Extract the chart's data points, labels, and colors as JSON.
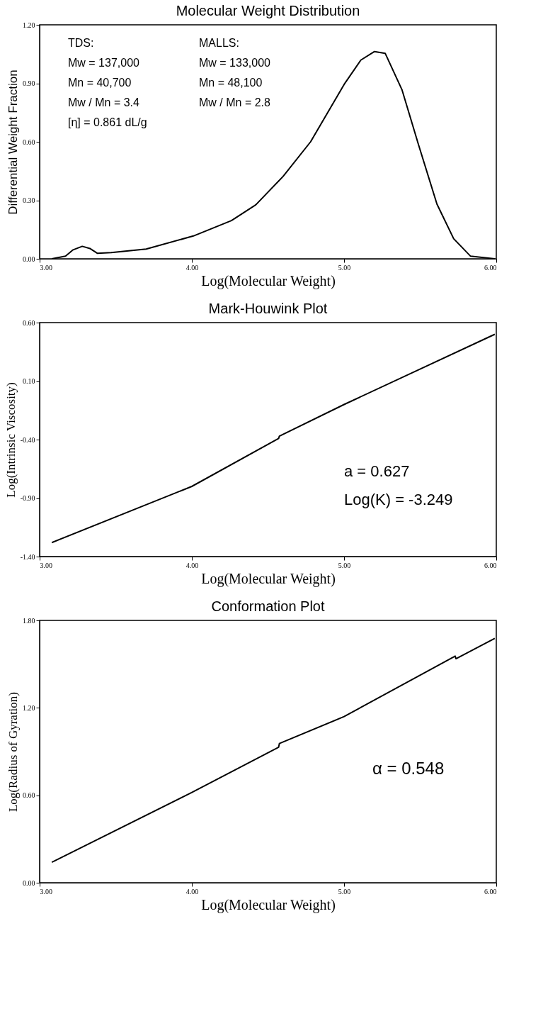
{
  "chart_data": [
    {
      "type": "line",
      "title": "Molecular Weight Distribution",
      "xlabel": "Log(Molecular Weight)",
      "ylabel": "Differential Weight Fraction",
      "x": [
        3.08,
        3.17,
        3.22,
        3.28,
        3.33,
        3.38,
        3.47,
        3.7,
        4.01,
        4.26,
        4.42,
        4.6,
        4.78,
        5.0,
        5.11,
        5.2,
        5.27,
        5.38,
        5.49,
        5.61,
        5.72,
        5.83,
        5.99
      ],
      "series": [
        {
          "color": "#000000",
          "values": [
            0.0,
            0.014,
            0.046,
            0.064,
            0.053,
            0.028,
            0.032,
            0.05,
            0.117,
            0.196,
            0.277,
            0.423,
            0.6,
            0.894,
            1.019,
            1.063,
            1.054,
            0.868,
            0.583,
            0.281,
            0.103,
            0.014,
            0.0
          ]
        }
      ],
      "xlim": [
        3,
        6
      ],
      "ylim": [
        0,
        1.2
      ],
      "xticks": [
        {
          "value": 3,
          "label": "3.00"
        },
        {
          "value": 4,
          "label": "4.00"
        },
        {
          "value": 5,
          "label": "5.00"
        },
        {
          "value": 6,
          "label": "6.00"
        }
      ],
      "yticks": [
        {
          "value": 0,
          "label": "0.00"
        },
        {
          "value": 0.3,
          "label": "0.30"
        },
        {
          "value": 0.6,
          "label": "0.60"
        },
        {
          "value": 0.9,
          "label": "0.90"
        },
        {
          "value": 1.2,
          "label": "1.20"
        }
      ],
      "annotations": [
        "TDS:",
        "Mw = 137,000",
        "Mn = 40,700",
        "Mw / Mn = 3.4",
        "[η] = 0.861 dL/g",
        "MALLS:",
        "Mw = 133,000",
        "Mn = 48,100",
        "Mw / Mn = 2.8"
      ],
      "grid": false,
      "legend": false,
      "marker": "none",
      "line_style": "solid"
    },
    {
      "type": "line",
      "title": "Mark-Houwink Plot",
      "xlabel": "Log(Molecular Weight)",
      "ylabel": "Log(Intrinsic Viscosity)",
      "x": [
        3.08,
        4.0,
        4.57,
        4.575,
        5.0,
        5.99
      ],
      "series": [
        {
          "color": "#000000",
          "values": [
            -1.28,
            -0.8,
            -0.39,
            -0.37,
            -0.1,
            0.5
          ]
        }
      ],
      "xlim": [
        3,
        6
      ],
      "ylim": [
        -1.4,
        0.6
      ],
      "xticks": [
        {
          "value": 3,
          "label": "3.00"
        },
        {
          "value": 4,
          "label": "4.00"
        },
        {
          "value": 5,
          "label": "5.00"
        },
        {
          "value": 6,
          "label": "6.00"
        }
      ],
      "yticks": [
        {
          "value": -1.4,
          "label": "-1.40"
        },
        {
          "value": -0.9,
          "label": "-0.90"
        },
        {
          "value": -0.4,
          "label": "-0.40"
        },
        {
          "value": 0.1,
          "label": "0.10"
        },
        {
          "value": 0.6,
          "label": "0.60"
        }
      ],
      "annotations": [
        "a = 0.627",
        "Log(K) = -3.249"
      ],
      "grid": false,
      "legend": false,
      "marker": "none",
      "line_style": "solid"
    },
    {
      "type": "line",
      "title": "Conformation Plot",
      "xlabel": "Log(Molecular Weight)",
      "ylabel": "Log(Radius of Gyration)",
      "x": [
        3.08,
        4.0,
        4.57,
        4.575,
        5.0,
        5.73,
        5.735,
        5.99
      ],
      "series": [
        {
          "color": "#000000",
          "values": [
            0.14,
            0.62,
            0.93,
            0.955,
            1.14,
            1.555,
            1.537,
            1.677
          ]
        }
      ],
      "xlim": [
        3,
        6
      ],
      "ylim": [
        0,
        1.8
      ],
      "xticks": [
        {
          "value": 3,
          "label": "3.00"
        },
        {
          "value": 4,
          "label": "4.00"
        },
        {
          "value": 5,
          "label": "5.00"
        },
        {
          "value": 6,
          "label": "6.00"
        }
      ],
      "yticks": [
        {
          "value": 0,
          "label": "0.00"
        },
        {
          "value": 0.6,
          "label": "0.60"
        },
        {
          "value": 1.2,
          "label": "1.20"
        },
        {
          "value": 1.8,
          "label": "1.80"
        }
      ],
      "annotations": [
        "α = 0.548"
      ],
      "grid": false,
      "legend": false,
      "marker": "none",
      "line_style": "solid"
    }
  ]
}
